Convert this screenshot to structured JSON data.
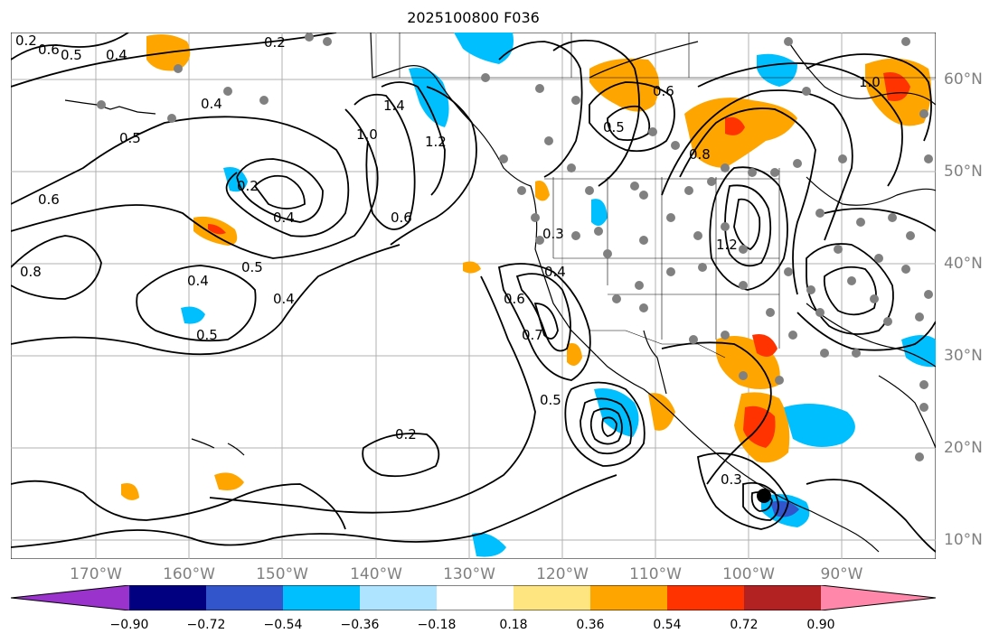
{
  "title": "2025100800 F036",
  "lat_labels": [
    "60°N",
    "50°N",
    "40°N",
    "30°N",
    "20°N",
    "10°N"
  ],
  "lon_labels": [
    "170°W",
    "160°W",
    "150°W",
    "140°W",
    "130°W",
    "120°W",
    "110°W",
    "100°W",
    "90°W"
  ],
  "colorbar": {
    "labels": [
      "−0.90",
      "−0.72",
      "−0.54",
      "−0.36",
      "−0.18",
      "0.18",
      "0.36",
      "0.54",
      "0.72",
      "0.90"
    ],
    "colors": [
      "#9933cc",
      "#000080",
      "#3355cc",
      "#00bfff",
      "#aee4ff",
      "#ffffff",
      "#ffe580",
      "#ffa500",
      "#ff3300",
      "#b22222",
      "#ff88aa"
    ]
  },
  "contour_labels": [
    "0.2",
    "0.6",
    "0.5",
    "0.4",
    "0.2",
    "0.4",
    "0.5",
    "0.6",
    "1.0",
    "1.4",
    "1.2",
    "0.6",
    "0.4",
    "0.2",
    "0.4",
    "0.5",
    "0.8",
    "0.4",
    "0.5",
    "0.2",
    "0.3",
    "0.6",
    "0.7",
    "0.4",
    "0.5",
    "0.6",
    "0.8",
    "1.0",
    "1.2",
    "0.5",
    "0.3"
  ],
  "colors": {
    "land_outline": "#000000",
    "contour": "#000000",
    "grid": "#b0b0b0",
    "dots": "#808080"
  }
}
